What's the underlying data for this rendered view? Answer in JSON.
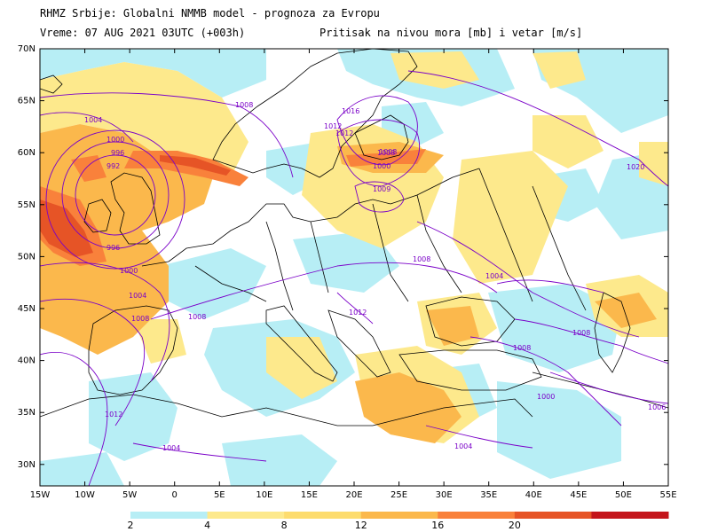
{
  "header": {
    "line1": "RHMZ Srbije: Globalni NMMB model - prognoza za Evropu",
    "line2_left": "Vreme: 07 AUG 2021 03UTC (+003h)",
    "line2_right": "Pritisak na nivou mora [mb] i vetar [m/s]"
  },
  "map": {
    "lat_labels": [
      "70N",
      "65N",
      "60N",
      "55N",
      "50N",
      "45N",
      "40N",
      "35N",
      "30N"
    ],
    "lon_labels": [
      "15W",
      "10W",
      "5W",
      "0",
      "5E",
      "10E",
      "15E",
      "20E",
      "25E",
      "30E",
      "35E",
      "40E",
      "45E",
      "50E",
      "55E"
    ],
    "isobar_labels": [
      "1008",
      "1004",
      "1000",
      "996",
      "992",
      "996",
      "1000",
      "1004",
      "1008",
      "1008",
      "1016",
      "1012",
      "1008",
      "1000",
      "1009",
      "1008",
      "1020",
      "1004",
      "1012",
      "1008",
      "1008",
      "1000",
      "1012",
      "1006",
      "1004",
      "1004",
      "1008",
      "1012"
    ]
  },
  "colorbar": {
    "thresholds": [
      "2",
      "4",
      "8",
      "12",
      "16",
      "20"
    ],
    "colors": [
      "#b7eef5",
      "#fde98c",
      "#fddc6e",
      "#fbb84c",
      "#f9813b",
      "#e65426",
      "#c4151b"
    ]
  }
}
